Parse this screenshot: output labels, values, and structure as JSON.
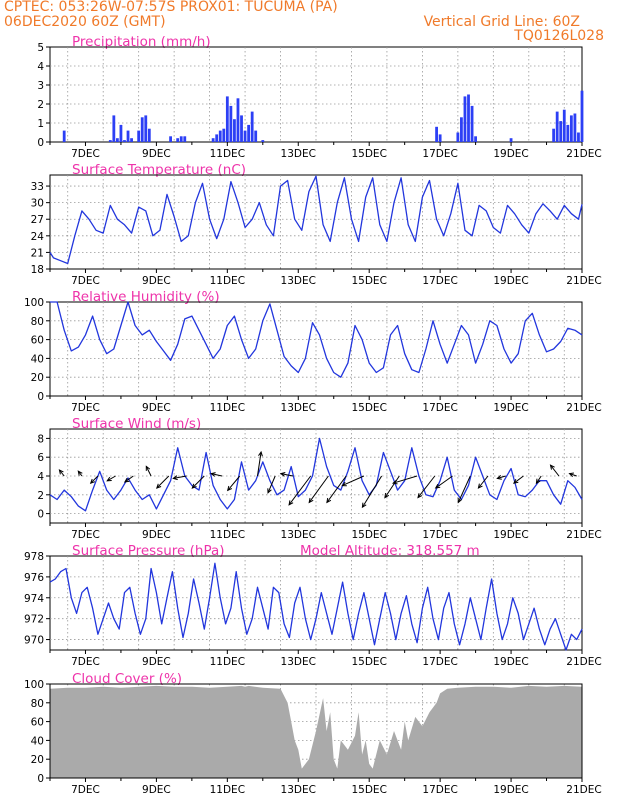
{
  "header": {
    "line1_left": "CPTEC:   053:26W-07:57S   PROX01: TUCUMA (PA)",
    "line2_left": "06DEC2020  60Z (GMT)",
    "line2_right": "Vertical Grid Line: 60Z",
    "line3_right": "TQ0126L028"
  },
  "x_axis": {
    "start_day": 6,
    "end_day": 21,
    "labels": [
      "7DEC",
      "9DEC",
      "11DEC",
      "13DEC",
      "15DEC",
      "17DEC",
      "19DEC",
      "21DEC"
    ],
    "label_days": [
      7,
      9,
      11,
      13,
      15,
      17,
      19,
      21
    ]
  },
  "colors": {
    "line": "#2236dd",
    "bar": "#2c3ff5",
    "cloud": "#aaaaaa",
    "title": "#ee33aa",
    "header": "#f07a2a"
  },
  "chart_data": [
    {
      "id": "precip",
      "type": "bar",
      "title": "Precipitation  (mm/h)",
      "ylim": [
        0,
        5
      ],
      "yticks": [
        0,
        1,
        2,
        3,
        4,
        5
      ],
      "x": [
        6.4,
        7.7,
        7.8,
        7.9,
        8.0,
        8.1,
        8.2,
        8.3,
        8.5,
        8.6,
        8.7,
        8.8,
        9.4,
        9.6,
        9.7,
        9.8,
        10.6,
        10.7,
        10.8,
        10.9,
        11.0,
        11.1,
        11.2,
        11.3,
        11.4,
        11.5,
        11.6,
        11.7,
        11.8,
        12.0,
        16.9,
        17.0,
        17.5,
        17.6,
        17.7,
        17.8,
        17.9,
        18.0,
        19.0,
        20.2,
        20.3,
        20.4,
        20.5,
        20.6,
        20.7,
        20.8,
        20.9,
        21.0
      ],
      "values": [
        0.6,
        0.1,
        1.4,
        0.2,
        0.9,
        0.1,
        0.6,
        0.2,
        0.6,
        1.3,
        1.4,
        0.7,
        0.3,
        0.2,
        0.3,
        0.3,
        0.2,
        0.4,
        0.6,
        0.7,
        2.4,
        1.9,
        1.2,
        2.3,
        1.4,
        0.6,
        0.9,
        1.6,
        0.6,
        0.1,
        0.8,
        0.4,
        0.5,
        1.3,
        2.4,
        2.5,
        1.9,
        0.3,
        0.2,
        0.7,
        1.6,
        1.1,
        1.7,
        0.9,
        1.4,
        1.5,
        0.5,
        2.7
      ]
    },
    {
      "id": "temp",
      "type": "line",
      "title": "Surface Temperature  (nC)",
      "ylim": [
        18,
        35
      ],
      "yticks": [
        18,
        21,
        24,
        27,
        30,
        33
      ],
      "x": [
        6.0,
        6.1,
        6.3,
        6.5,
        6.7,
        6.9,
        7.1,
        7.3,
        7.5,
        7.7,
        7.9,
        8.1,
        8.3,
        8.5,
        8.7,
        8.9,
        9.1,
        9.3,
        9.5,
        9.7,
        9.9,
        10.1,
        10.3,
        10.5,
        10.7,
        10.9,
        11.1,
        11.3,
        11.5,
        11.7,
        11.9,
        12.1,
        12.3,
        12.5,
        12.7,
        12.9,
        13.1,
        13.3,
        13.5,
        13.7,
        13.9,
        14.1,
        14.3,
        14.5,
        14.7,
        14.9,
        15.1,
        15.3,
        15.5,
        15.7,
        15.9,
        16.1,
        16.3,
        16.5,
        16.7,
        16.9,
        17.1,
        17.3,
        17.5,
        17.7,
        17.9,
        18.1,
        18.3,
        18.5,
        18.7,
        18.9,
        19.1,
        19.3,
        19.5,
        19.7,
        19.9,
        20.1,
        20.3,
        20.5,
        20.7,
        20.9,
        21.0
      ],
      "values": [
        21,
        20,
        19.5,
        19,
        24,
        28.5,
        27,
        25,
        24.5,
        29.5,
        27,
        26,
        24.5,
        29.2,
        28.5,
        24,
        25,
        31.5,
        27.5,
        23,
        24,
        30,
        33.5,
        27,
        23.5,
        27,
        33.8,
        30,
        25.5,
        27,
        30,
        26,
        24,
        33,
        34,
        27,
        25,
        32,
        34.8,
        26,
        23,
        30,
        34.5,
        27,
        23,
        31,
        34.5,
        26,
        23,
        30,
        34.5,
        26,
        23,
        31,
        34,
        27,
        24,
        28,
        33.5,
        25,
        24,
        29.5,
        28.5,
        25.5,
        24.5,
        29.5,
        28,
        26,
        24.5,
        28,
        29.8,
        28.5,
        27,
        29.5,
        28,
        27,
        29.7
      ]
    },
    {
      "id": "rh",
      "type": "line",
      "title": "Relative Humidity  (%)",
      "ylim": [
        0,
        100
      ],
      "yticks": [
        0,
        20,
        40,
        60,
        80,
        100
      ],
      "x": [
        6.0,
        6.2,
        6.4,
        6.6,
        6.8,
        7.0,
        7.2,
        7.4,
        7.6,
        7.8,
        8.0,
        8.2,
        8.4,
        8.6,
        8.8,
        9.0,
        9.2,
        9.4,
        9.6,
        9.8,
        10.0,
        10.2,
        10.4,
        10.6,
        10.8,
        11.0,
        11.2,
        11.4,
        11.6,
        11.8,
        12.0,
        12.2,
        12.4,
        12.6,
        12.8,
        13.0,
        13.2,
        13.4,
        13.6,
        13.8,
        14.0,
        14.2,
        14.4,
        14.6,
        14.8,
        15.0,
        15.2,
        15.4,
        15.6,
        15.8,
        16.0,
        16.2,
        16.4,
        16.6,
        16.8,
        17.0,
        17.2,
        17.4,
        17.6,
        17.8,
        18.0,
        18.2,
        18.4,
        18.6,
        18.8,
        19.0,
        19.2,
        19.4,
        19.6,
        19.8,
        20.0,
        20.2,
        20.4,
        20.6,
        20.8,
        21.0
      ],
      "values": [
        100,
        100,
        70,
        48,
        52,
        65,
        85,
        60,
        45,
        50,
        75,
        100,
        75,
        65,
        70,
        58,
        48,
        38,
        55,
        82,
        85,
        70,
        55,
        40,
        50,
        75,
        85,
        60,
        40,
        50,
        80,
        98,
        70,
        42,
        32,
        25,
        40,
        78,
        65,
        40,
        25,
        20,
        35,
        75,
        60,
        35,
        25,
        30,
        65,
        75,
        45,
        28,
        25,
        50,
        80,
        55,
        35,
        55,
        75,
        65,
        35,
        55,
        80,
        75,
        50,
        35,
        45,
        80,
        88,
        65,
        47,
        50,
        58,
        72,
        70,
        65
      ]
    },
    {
      "id": "wind",
      "type": "line",
      "title": "Surface Wind  (m/s)",
      "ylim": [
        -1,
        9
      ],
      "yticks": [
        0,
        2,
        4,
        6,
        8
      ],
      "x": [
        6.0,
        6.2,
        6.4,
        6.6,
        6.8,
        7.0,
        7.2,
        7.4,
        7.6,
        7.8,
        8.0,
        8.2,
        8.4,
        8.6,
        8.8,
        9.0,
        9.2,
        9.4,
        9.6,
        9.8,
        10.0,
        10.2,
        10.4,
        10.6,
        10.8,
        11.0,
        11.2,
        11.4,
        11.6,
        11.8,
        12.0,
        12.2,
        12.4,
        12.6,
        12.8,
        13.0,
        13.2,
        13.4,
        13.6,
        13.8,
        14.0,
        14.2,
        14.4,
        14.6,
        14.8,
        15.0,
        15.2,
        15.4,
        15.6,
        15.8,
        16.0,
        16.2,
        16.4,
        16.6,
        16.8,
        17.0,
        17.2,
        17.4,
        17.6,
        17.8,
        18.0,
        18.2,
        18.4,
        18.6,
        18.8,
        19.0,
        19.2,
        19.4,
        19.6,
        19.8,
        20.0,
        20.2,
        20.4,
        20.6,
        20.8,
        21.0
      ],
      "values": [
        2,
        1.5,
        2.5,
        1.8,
        0.8,
        0.3,
        2.5,
        4.5,
        2.5,
        1.5,
        2.5,
        3.8,
        2.5,
        1.5,
        2,
        0.5,
        2,
        3.5,
        7,
        4,
        3,
        2.5,
        6.5,
        3,
        1.5,
        0.5,
        1.5,
        5.5,
        2.5,
        3.5,
        5.5,
        3.5,
        2,
        2.5,
        5,
        1.8,
        2.5,
        4,
        8,
        5,
        3,
        2.5,
        4.5,
        7,
        3.5,
        2,
        3,
        6.5,
        4.5,
        2.5,
        3.5,
        7,
        4,
        2,
        1.8,
        3.5,
        6,
        2.5,
        1.5,
        3,
        6,
        4,
        2,
        1.5,
        3.5,
        4.8,
        2,
        1.8,
        2.5,
        3.5,
        3.5,
        2,
        1,
        3.5,
        2.8,
        1.5
      ],
      "vectors": [
        {
          "x": 6.4,
          "u": -0.2,
          "v": 0.25
        },
        {
          "x": 6.9,
          "u": -0.15,
          "v": 0.2
        },
        {
          "x": 7.35,
          "u": -0.3,
          "v": -0.3
        },
        {
          "x": 7.85,
          "u": -0.35,
          "v": -0.2
        },
        {
          "x": 8.35,
          "u": -0.35,
          "v": -0.25
        },
        {
          "x": 8.85,
          "u": -0.2,
          "v": 0.4
        },
        {
          "x": 9.35,
          "u": -0.5,
          "v": -0.5
        },
        {
          "x": 9.85,
          "u": -0.55,
          "v": -0.1
        },
        {
          "x": 10.35,
          "u": -0.5,
          "v": -0.5
        },
        {
          "x": 10.85,
          "u": -0.45,
          "v": 0.1
        },
        {
          "x": 11.35,
          "u": -0.5,
          "v": -0.6
        },
        {
          "x": 11.85,
          "u": 0.15,
          "v": 1.0
        },
        {
          "x": 12.35,
          "u": -0.3,
          "v": -0.7
        },
        {
          "x": 12.85,
          "u": -0.5,
          "v": 0.1
        },
        {
          "x": 13.35,
          "u": -0.9,
          "v": -1.2
        },
        {
          "x": 13.85,
          "u": -0.8,
          "v": -1.1
        },
        {
          "x": 14.35,
          "u": -0.8,
          "v": -1.1
        },
        {
          "x": 14.85,
          "u": -0.9,
          "v": -0.4
        },
        {
          "x": 15.35,
          "u": -0.8,
          "v": -1.3
        },
        {
          "x": 15.85,
          "u": -0.6,
          "v": -0.9
        },
        {
          "x": 16.35,
          "u": -1.0,
          "v": -0.3
        },
        {
          "x": 16.85,
          "u": -0.7,
          "v": -0.9
        },
        {
          "x": 17.35,
          "u": -0.7,
          "v": -0.5
        },
        {
          "x": 17.85,
          "u": -0.5,
          "v": -1.1
        },
        {
          "x": 18.35,
          "u": -0.4,
          "v": -0.5
        },
        {
          "x": 18.85,
          "u": -0.35,
          "v": -0.1
        },
        {
          "x": 19.35,
          "u": -0.4,
          "v": -0.3
        },
        {
          "x": 19.85,
          "u": -0.2,
          "v": -0.3
        },
        {
          "x": 20.35,
          "u": -0.35,
          "v": 0.45
        },
        {
          "x": 20.85,
          "u": -0.3,
          "v": 0.1
        }
      ]
    },
    {
      "id": "pres",
      "type": "line",
      "title": "Surface Pressure  (hPa)",
      "subtitle": "Model Altitude: 318.557  m",
      "ylim": [
        969,
        978
      ],
      "yticks": [
        970,
        972,
        974,
        976,
        978
      ],
      "x": [
        6.0,
        6.15,
        6.3,
        6.45,
        6.6,
        6.75,
        6.9,
        7.05,
        7.2,
        7.35,
        7.5,
        7.65,
        7.8,
        7.95,
        8.1,
        8.25,
        8.4,
        8.55,
        8.7,
        8.85,
        9.0,
        9.15,
        9.3,
        9.45,
        9.6,
        9.75,
        9.9,
        10.05,
        10.2,
        10.35,
        10.5,
        10.65,
        10.8,
        10.95,
        11.1,
        11.25,
        11.4,
        11.55,
        11.7,
        11.85,
        12.0,
        12.15,
        12.3,
        12.45,
        12.6,
        12.75,
        12.9,
        13.05,
        13.2,
        13.35,
        13.5,
        13.65,
        13.8,
        13.95,
        14.1,
        14.25,
        14.4,
        14.55,
        14.7,
        14.85,
        15.0,
        15.15,
        15.3,
        15.45,
        15.6,
        15.75,
        15.9,
        16.05,
        16.2,
        16.35,
        16.5,
        16.65,
        16.8,
        16.95,
        17.1,
        17.25,
        17.4,
        17.55,
        17.7,
        17.85,
        18.0,
        18.15,
        18.3,
        18.45,
        18.6,
        18.75,
        18.9,
        19.05,
        19.2,
        19.35,
        19.5,
        19.65,
        19.8,
        19.95,
        20.1,
        20.25,
        20.4,
        20.55,
        20.7,
        20.85,
        21.0
      ],
      "values": [
        975.5,
        975.8,
        976.5,
        976.8,
        974.0,
        972.5,
        974.5,
        975.0,
        973.0,
        970.5,
        972.0,
        973.5,
        972.0,
        971.0,
        974.5,
        975.0,
        972.5,
        970.5,
        972.0,
        976.8,
        974.5,
        971.5,
        974.0,
        976.5,
        973.0,
        970.2,
        972.5,
        975.8,
        973.5,
        971.0,
        974.0,
        977.3,
        974.0,
        971.5,
        973.0,
        976.5,
        973.0,
        970.5,
        972.0,
        975.0,
        973.0,
        971.0,
        975.0,
        974.5,
        971.5,
        970.2,
        973.5,
        975.0,
        972.0,
        970.0,
        972.0,
        974.5,
        972.5,
        970.5,
        973.0,
        975.5,
        972.5,
        970.0,
        972.5,
        974.5,
        972.0,
        969.5,
        972.0,
        974.5,
        972.5,
        970.0,
        972.5,
        974.2,
        971.5,
        969.7,
        973.0,
        975.0,
        972.0,
        970.0,
        973.0,
        974.5,
        971.5,
        969.5,
        971.5,
        974.0,
        972.0,
        970.0,
        973.0,
        975.8,
        972.5,
        970.0,
        971.5,
        974.0,
        972.5,
        970.0,
        971.5,
        973.0,
        971.0,
        969.5,
        971.0,
        972.0,
        970.5,
        969.0,
        970.5,
        970.0,
        971.0
      ]
    },
    {
      "id": "cloud",
      "type": "area",
      "title": "Cloud Cover  (%)",
      "ylim": [
        0,
        100
      ],
      "yticks": [
        0,
        20,
        40,
        60,
        80,
        100
      ],
      "x": [
        6.0,
        6.5,
        7.0,
        7.5,
        8.0,
        8.5,
        9.0,
        9.5,
        10.0,
        10.5,
        11.0,
        11.4,
        11.5,
        11.6,
        12.0,
        12.5,
        12.7,
        12.8,
        12.9,
        13.0,
        13.1,
        13.2,
        13.3,
        13.5,
        13.7,
        13.8,
        13.9,
        14.0,
        14.1,
        14.2,
        14.4,
        14.6,
        14.7,
        14.8,
        14.9,
        15.0,
        15.1,
        15.3,
        15.5,
        15.7,
        15.9,
        16.0,
        16.1,
        16.3,
        16.5,
        16.7,
        16.9,
        17.0,
        17.2,
        17.5,
        18.0,
        18.5,
        19.0,
        19.5,
        20.0,
        20.5,
        21.0
      ],
      "values": [
        95,
        96,
        96,
        97,
        96,
        97,
        98,
        97,
        97,
        96,
        97,
        98,
        97,
        98,
        96,
        95,
        80,
        60,
        40,
        30,
        10,
        15,
        20,
        50,
        85,
        50,
        70,
        20,
        10,
        40,
        30,
        45,
        70,
        25,
        40,
        15,
        10,
        40,
        25,
        50,
        30,
        60,
        40,
        65,
        55,
        70,
        80,
        90,
        95,
        96,
        97,
        97,
        96,
        98,
        97,
        98,
        97
      ]
    }
  ]
}
